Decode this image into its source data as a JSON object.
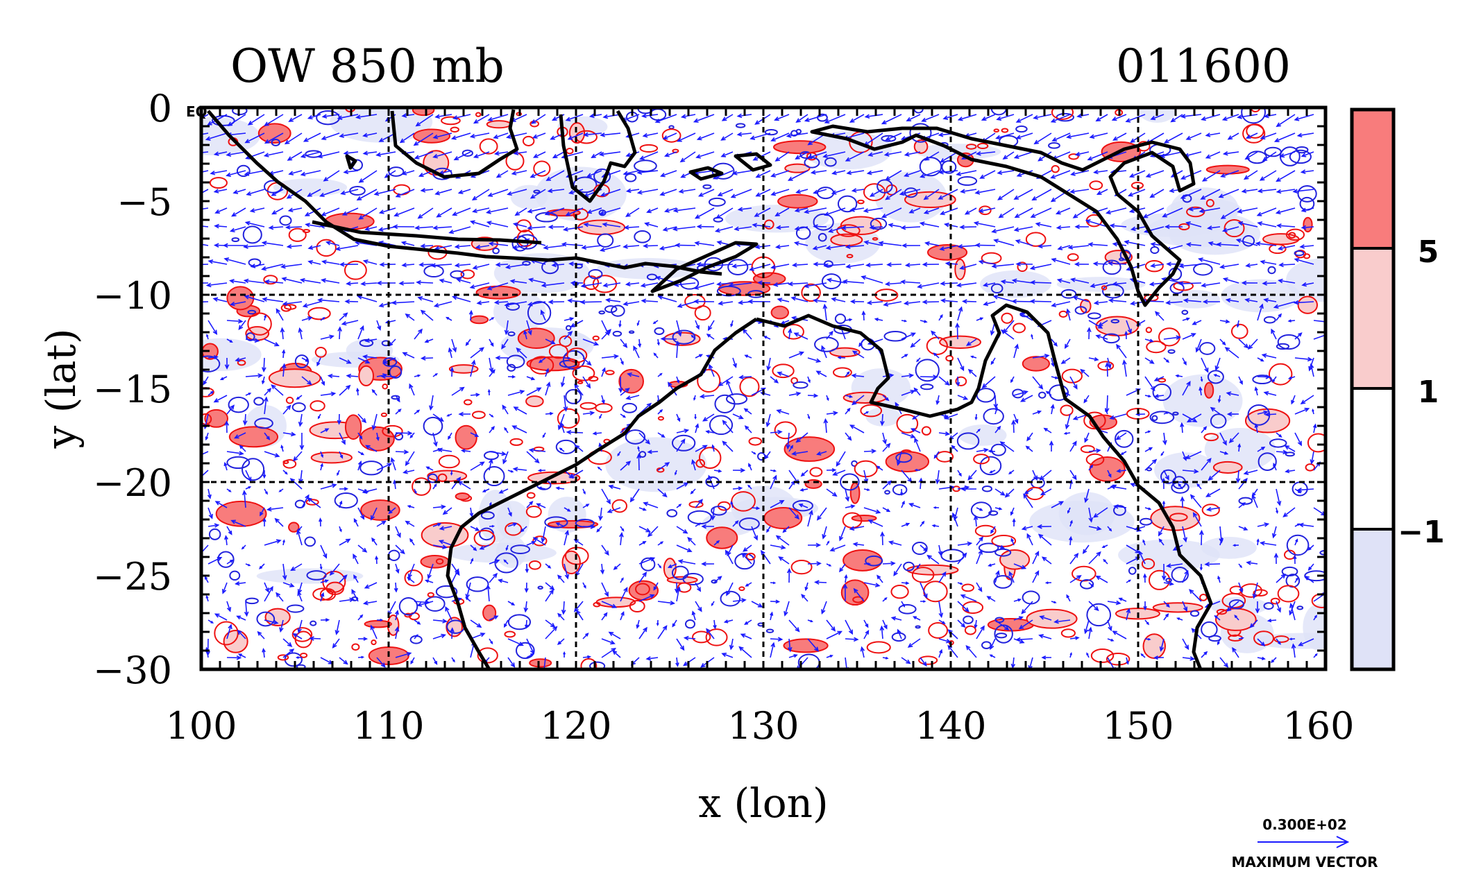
{
  "title_left": "OW 850 mb",
  "title_right": "011600",
  "xlabel": "x (lon)",
  "ylabel": "y (lat)",
  "corner_label": "EQ",
  "x_ticks": [
    "100",
    "110",
    "120",
    "130",
    "140",
    "150",
    "160"
  ],
  "y_ticks": [
    "0",
    "−5",
    "−10",
    "−15",
    "−20",
    "−25",
    "−30"
  ],
  "colorbar": {
    "labels": [
      "5",
      "1",
      "−1"
    ],
    "colors": [
      "#f87c7c",
      "#f9cccc",
      "#ffffff",
      "#dfe2f7"
    ]
  },
  "vector_key": {
    "value": "0.300E+02",
    "label": "MAXIMUM VECTOR"
  },
  "colors": {
    "vector": "#1a1aff",
    "positive_contour": "#ee1111",
    "negative_contour": "#2222dd",
    "coastline": "#000000"
  },
  "chart_data": {
    "type": "map",
    "field": "Okubo-Weiss parameter at 850 mb with wind vectors",
    "xlim": [
      100,
      160
    ],
    "ylim": [
      -30,
      0
    ],
    "contour_levels": [
      -1,
      1,
      5
    ],
    "grid": true
  }
}
